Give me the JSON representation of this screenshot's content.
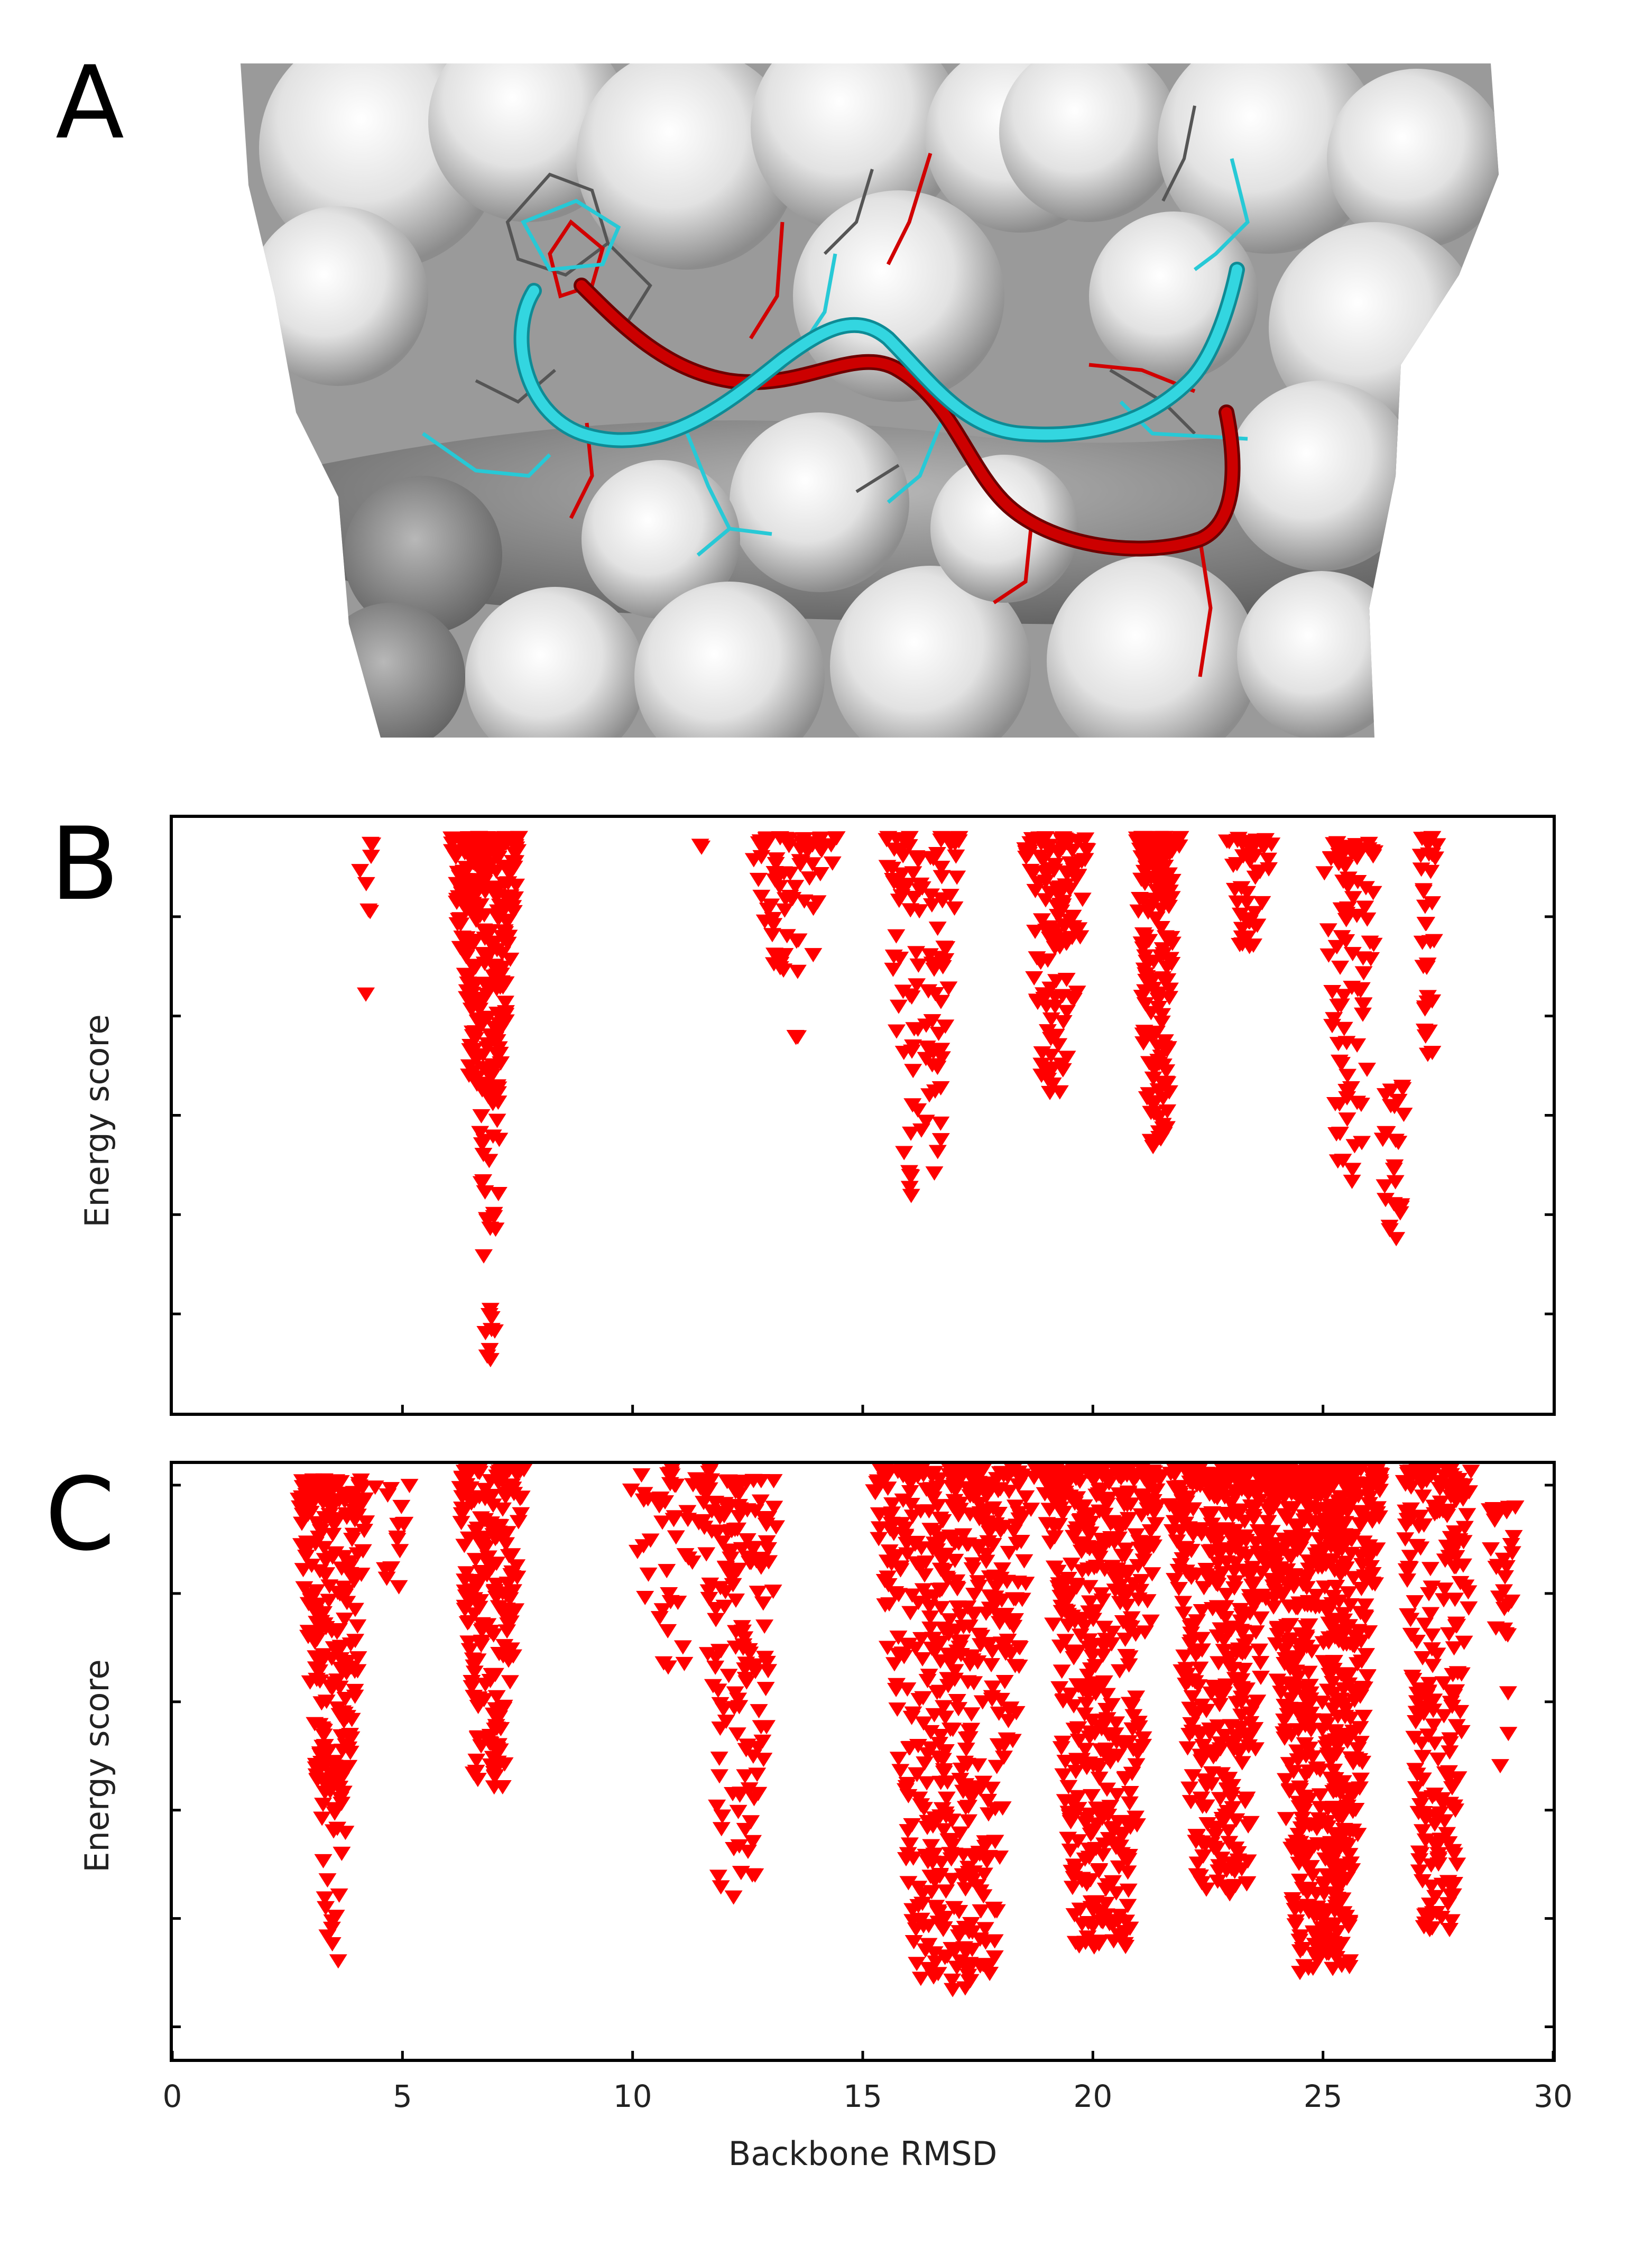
{
  "panels": [
    {
      "letter": "A"
    },
    {
      "letter": "B"
    },
    {
      "letter": "C"
    }
  ],
  "colors": {
    "marker": "#ff0000",
    "surface_light": "#ececec",
    "surface_dark": "#7a7a7a",
    "ribbon_cyan": "#33d6e0",
    "ribbon_red": "#cc0000"
  },
  "chart_data": [
    {
      "panel": "B",
      "type": "scatter",
      "marker": "red-downward-triangle",
      "xlabel": "",
      "ylabel": "Energy score",
      "xlim": [
        0,
        30
      ],
      "ylim": [
        0,
        6
      ],
      "y_ticks_unlabeled": [
        1,
        2,
        3,
        4,
        5
      ],
      "x_ticks_unlabeled": [
        5,
        10,
        15,
        20,
        25
      ],
      "clusters": [
        {
          "x_center": 4.2,
          "x_spread": 0.15,
          "y_top": 5.75,
          "y_bottom": 4.15,
          "count": 8
        },
        {
          "x_center": 6.8,
          "x_spread": 0.75,
          "y_top": 5.8,
          "y_bottom": 3.3,
          "count": 260
        },
        {
          "x_center": 6.9,
          "x_spread": 0.25,
          "y_top": 3.3,
          "y_bottom": 0.5,
          "count": 40
        },
        {
          "x_center": 11.5,
          "x_spread": 0.1,
          "y_top": 5.75,
          "y_bottom": 5.7,
          "count": 2
        },
        {
          "x_center": 13.5,
          "x_spread": 1.0,
          "y_top": 5.8,
          "y_bottom": 4.45,
          "count": 70
        },
        {
          "x_center": 13.5,
          "x_spread": 0.15,
          "y_top": 3.8,
          "y_bottom": 3.75,
          "count": 3
        },
        {
          "x_center": 16.3,
          "x_spread": 0.8,
          "y_top": 5.8,
          "y_bottom": 2.1,
          "count": 110
        },
        {
          "x_center": 19.2,
          "x_spread": 0.7,
          "y_top": 5.8,
          "y_bottom": 3.2,
          "count": 130
        },
        {
          "x_center": 21.4,
          "x_spread": 0.5,
          "y_top": 5.8,
          "y_bottom": 2.6,
          "count": 160
        },
        {
          "x_center": 23.4,
          "x_spread": 0.5,
          "y_top": 5.8,
          "y_bottom": 4.6,
          "count": 45
        },
        {
          "x_center": 25.6,
          "x_spread": 0.6,
          "y_top": 5.75,
          "y_bottom": 2.3,
          "count": 90
        },
        {
          "x_center": 26.5,
          "x_spread": 0.3,
          "y_top": 3.3,
          "y_bottom": 1.3,
          "count": 25
        },
        {
          "x_center": 27.3,
          "x_spread": 0.2,
          "y_top": 5.8,
          "y_bottom": 3.6,
          "count": 35
        }
      ]
    },
    {
      "panel": "C",
      "type": "scatter",
      "marker": "red-downward-triangle",
      "xlabel": "Backbone RMSD",
      "ylabel": "Energy score",
      "xlim": [
        0,
        30
      ],
      "ylim": [
        0,
        5.5
      ],
      "x_ticks": [
        0,
        5,
        10,
        15,
        20,
        25,
        30
      ],
      "y_ticks_unlabeled": [
        0.3,
        1.3,
        2.3,
        3.3,
        4.3,
        5.3
      ],
      "clusters": [
        {
          "x_center": 3.5,
          "x_spread": 0.8,
          "y_top": 5.35,
          "y_bottom": 2.5,
          "count": 230
        },
        {
          "x_center": 3.5,
          "x_spread": 0.3,
          "y_top": 2.5,
          "y_bottom": 0.8,
          "count": 25
        },
        {
          "x_center": 4.8,
          "x_spread": 0.4,
          "y_top": 5.3,
          "y_bottom": 4.3,
          "count": 15
        },
        {
          "x_center": 6.9,
          "x_spread": 0.75,
          "y_top": 5.45,
          "y_bottom": 2.5,
          "count": 200
        },
        {
          "x_center": 10.8,
          "x_spread": 0.9,
          "y_top": 5.45,
          "y_bottom": 3.6,
          "count": 50
        },
        {
          "x_center": 12.3,
          "x_spread": 0.9,
          "y_top": 5.35,
          "y_bottom": 1.4,
          "count": 160
        },
        {
          "x_center": 17.0,
          "x_spread": 1.8,
          "y_top": 5.45,
          "y_bottom": 0.6,
          "count": 520
        },
        {
          "x_center": 20.2,
          "x_spread": 1.3,
          "y_top": 5.45,
          "y_bottom": 1.0,
          "count": 450
        },
        {
          "x_center": 22.8,
          "x_spread": 1.2,
          "y_top": 5.45,
          "y_bottom": 1.5,
          "count": 400
        },
        {
          "x_center": 25.0,
          "x_spread": 1.3,
          "y_top": 5.45,
          "y_bottom": 0.8,
          "count": 650
        },
        {
          "x_center": 27.5,
          "x_spread": 0.8,
          "y_top": 5.45,
          "y_bottom": 1.2,
          "count": 220
        },
        {
          "x_center": 28.9,
          "x_spread": 0.3,
          "y_top": 5.1,
          "y_bottom": 2.7,
          "count": 30
        }
      ]
    }
  ]
}
